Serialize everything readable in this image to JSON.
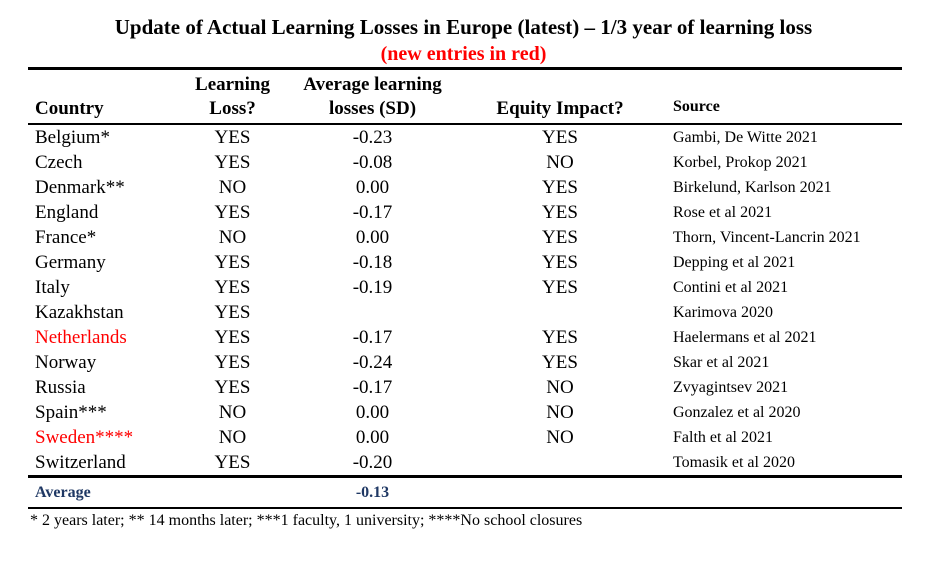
{
  "title": "Update of Actual Learning Losses in Europe (latest) – 1/3 year of learning loss",
  "subtitle": "(new entries in red)",
  "colors": {
    "highlight_red": "#ff0000",
    "average_navy": "#1f3864"
  },
  "table": {
    "headers": {
      "country": "Country",
      "learning_loss": "Learning Loss?",
      "avg_losses": "Average learning losses (SD)",
      "equity": "Equity Impact?",
      "source": "Source"
    },
    "rows": [
      {
        "country": "Belgium*",
        "red": false,
        "learning_loss": "YES",
        "avg": "-0.23",
        "equity": "YES",
        "source": "Gambi, De Witte 2021"
      },
      {
        "country": "Czech",
        "red": false,
        "learning_loss": "YES",
        "avg": "-0.08",
        "equity": "NO",
        "source": "Korbel, Prokop 2021"
      },
      {
        "country": "Denmark**",
        "red": false,
        "learning_loss": "NO",
        "avg": "0.00",
        "equity": "YES",
        "source": "Birkelund, Karlson 2021"
      },
      {
        "country": "England",
        "red": false,
        "learning_loss": "YES",
        "avg": "-0.17",
        "equity": "YES",
        "source": "Rose et al 2021"
      },
      {
        "country": "France*",
        "red": false,
        "learning_loss": "NO",
        "avg": "0.00",
        "equity": "YES",
        "source": "Thorn, Vincent-Lancrin 2021"
      },
      {
        "country": "Germany",
        "red": false,
        "learning_loss": "YES",
        "avg": "-0.18",
        "equity": "YES",
        "source": "Depping et al 2021"
      },
      {
        "country": "Italy",
        "red": false,
        "learning_loss": "YES",
        "avg": "-0.19",
        "equity": "YES",
        "source": "Contini et al 2021"
      },
      {
        "country": "Kazakhstan",
        "red": false,
        "learning_loss": "YES",
        "avg": "",
        "equity": "",
        "source": "Karimova 2020"
      },
      {
        "country": "Netherlands",
        "red": true,
        "learning_loss": "YES",
        "avg": "-0.17",
        "equity": "YES",
        "source": "Haelermans et al 2021"
      },
      {
        "country": "Norway",
        "red": false,
        "learning_loss": "YES",
        "avg": "-0.24",
        "equity": "YES",
        "source": "Skar et al 2021"
      },
      {
        "country": "Russia",
        "red": false,
        "learning_loss": "YES",
        "avg": "-0.17",
        "equity": "NO",
        "source": "Zvyagintsev 2021"
      },
      {
        "country": "Spain***",
        "red": false,
        "learning_loss": "NO",
        "avg": "0.00",
        "equity": "NO",
        "source": "Gonzalez et al 2020"
      },
      {
        "country": "Sweden****",
        "red": true,
        "learning_loss": "NO",
        "avg": "0.00",
        "equity": "NO",
        "source": "Falth et al 2021"
      },
      {
        "country": "Switzerland",
        "red": false,
        "learning_loss": "YES",
        "avg": "-0.20",
        "equity": "",
        "source": "Tomasik et al 2020"
      }
    ],
    "average": {
      "label": "Average",
      "value": "-0.13"
    }
  },
  "footnote": "* 2 years later; ** 14 months later; ***1 faculty, 1 university; ****No school closures"
}
